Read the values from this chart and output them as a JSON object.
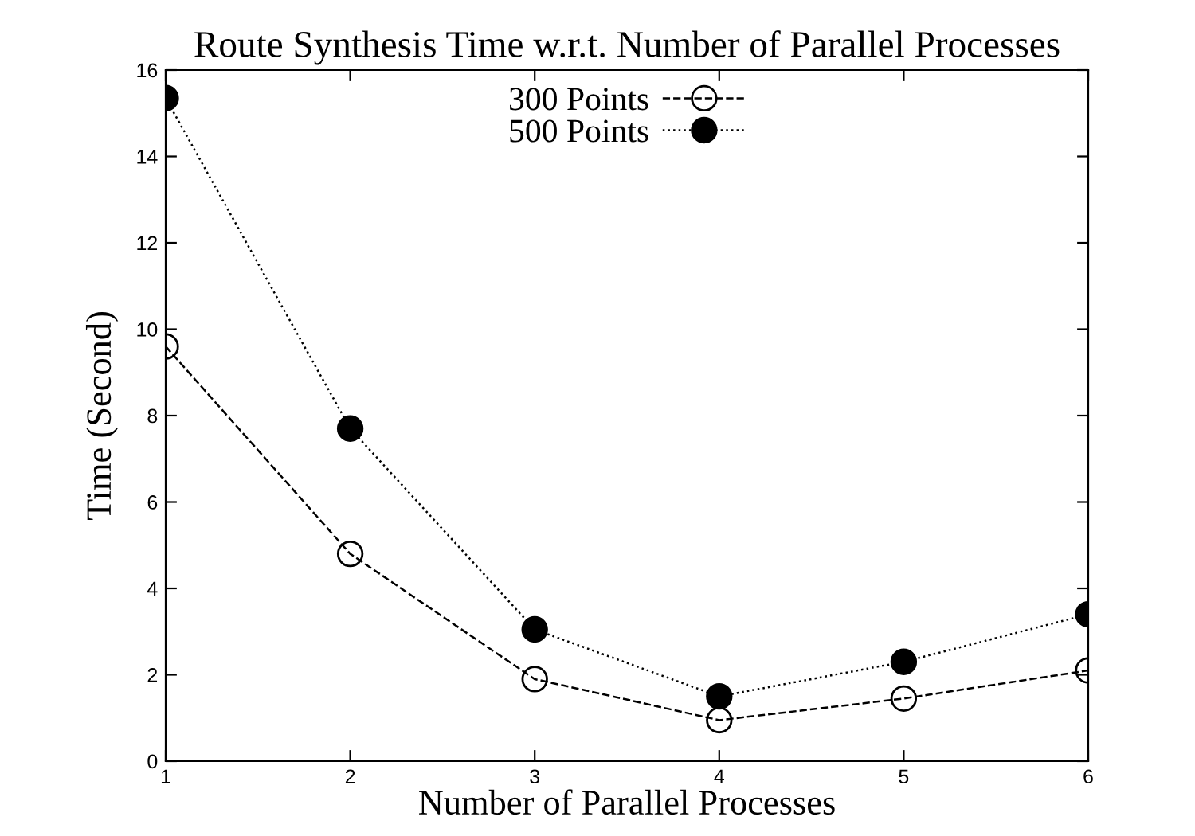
{
  "chart_data": {
    "type": "line",
    "title": "Route Synthesis Time w.r.t. Number of Parallel Processes",
    "xlabel": "Number of Parallel Processes",
    "ylabel": "Time (Second)",
    "x": [
      1,
      2,
      3,
      4,
      5,
      6
    ],
    "series": [
      {
        "name": "300 Points",
        "color": "#000000",
        "values": [
          9.6,
          4.8,
          1.9,
          0.95,
          1.45,
          2.1
        ],
        "marker": "circle",
        "line_style": "dashed"
      },
      {
        "name": "500 Points",
        "color": "#000000",
        "values": [
          15.35,
          7.7,
          3.05,
          1.5,
          2.3,
          3.4
        ],
        "marker": "circle",
        "line_style": "dotted"
      }
    ],
    "xlim": [
      1,
      6
    ],
    "xticks": [
      1,
      2,
      3,
      4,
      5,
      6
    ],
    "ylim": [
      0,
      16
    ],
    "yticks": [
      0,
      2,
      4,
      6,
      8,
      10,
      12,
      14,
      16
    ],
    "grid": false,
    "legend": "top"
  }
}
